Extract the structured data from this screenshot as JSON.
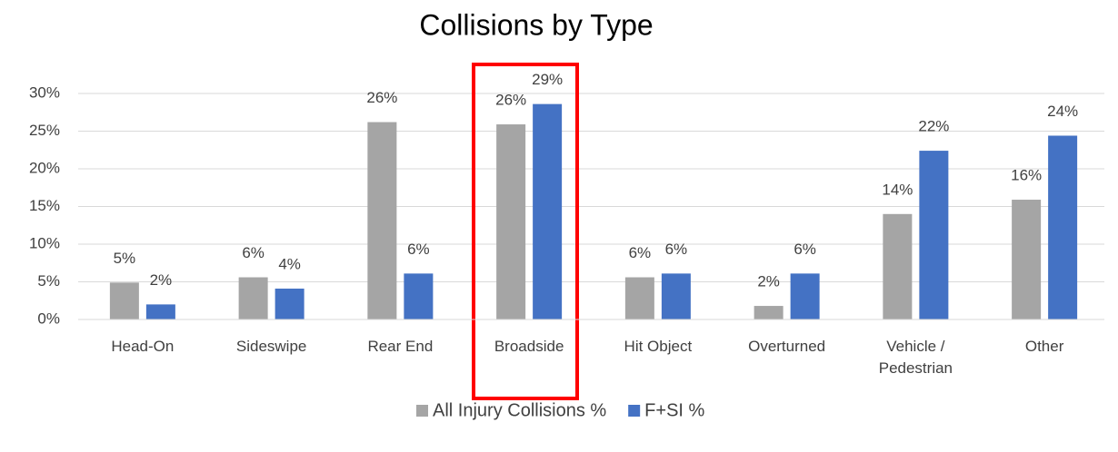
{
  "chart_data": {
    "type": "bar",
    "title": "Collisions by Type",
    "categories": [
      "Head-On",
      "Sideswipe",
      "Rear End",
      "Broadside",
      "Hit Object",
      "Overturned",
      "Vehicle / Pedestrian",
      "Other"
    ],
    "series": [
      {
        "name": "All Injury Collisions %",
        "color": "#a5a5a5",
        "values": [
          4.9,
          5.6,
          26.2,
          25.9,
          5.6,
          1.8,
          14.0,
          15.9
        ],
        "value_labels": [
          "5%",
          "6%",
          "26%",
          "26%",
          "6%",
          "2%",
          "14%",
          "16%"
        ]
      },
      {
        "name": "F+SI %",
        "color": "#4472c4",
        "values": [
          2.0,
          4.1,
          6.1,
          28.6,
          6.1,
          6.1,
          22.4,
          24.4
        ],
        "value_labels": [
          "2%",
          "4%",
          "6%",
          "29%",
          "6%",
          "6%",
          "22%",
          "24%"
        ]
      }
    ],
    "ylim": [
      0,
      30
    ],
    "yticks": [
      {
        "value": 0,
        "label": "0%"
      },
      {
        "value": 5,
        "label": "5%"
      },
      {
        "value": 10,
        "label": "10%"
      },
      {
        "value": 15,
        "label": "15%"
      },
      {
        "value": 20,
        "label": "20%"
      },
      {
        "value": 25,
        "label": "25%"
      },
      {
        "value": 30,
        "label": "30%"
      }
    ],
    "grid": true,
    "legend": "bottom"
  }
}
